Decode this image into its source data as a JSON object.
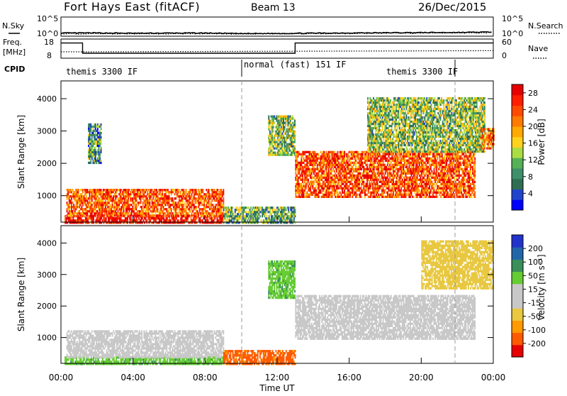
{
  "header": {
    "title": "Fort Hays East (fitACF)",
    "beam": "Beam 13",
    "date": "26/Dec/2015"
  },
  "left_labels": {
    "nsky": "N.Sky",
    "freq_top": "Freq.",
    "freq_unit": "[MHz]",
    "cpid": "CPID"
  },
  "right_labels": {
    "nsearch": "N.Search",
    "nave": "Nave"
  },
  "cpid_segments": [
    {
      "label": "themis 3300 IF"
    },
    {
      "label": "normal (fast) 151 IF"
    },
    {
      "label": "themis 3300 IF"
    }
  ],
  "colors": {
    "power": [
      "#0000ff",
      "#2244cc",
      "#2f6e52",
      "#3e8f6a",
      "#56b056",
      "#aadd44",
      "#ffd21e",
      "#ffaa00",
      "#ff7a00",
      "#ff4a00",
      "#ff1e00",
      "#e60000"
    ],
    "velocity": [
      "#e60000",
      "#ff5a00",
      "#ff9a00",
      "#e8c840",
      "#c8c8c8",
      "#c8c8c8",
      "#66cc33",
      "#3a8f5a",
      "#2266aa",
      "#2233cc"
    ]
  },
  "chart_data": [
    {
      "type": "line",
      "panel": "noise",
      "left_axis": {
        "ticks": [
          "10^5",
          "10^0"
        ],
        "label": "N.Sky"
      },
      "right_axis": {
        "ticks": [
          "10^5",
          "10^0"
        ],
        "label": "N.Search"
      },
      "series": [
        {
          "name": "N.Sky",
          "style": "solid",
          "x": [
            0,
            2,
            4,
            6,
            8,
            10,
            12,
            14,
            16,
            18,
            20,
            22,
            24
          ],
          "y_log10": [
            0.7,
            0.75,
            0.65,
            0.7,
            0.72,
            0.55,
            0.6,
            0.68,
            0.75,
            0.8,
            0.85,
            0.9,
            1.0
          ]
        },
        {
          "name": "N.Search",
          "style": "dotted",
          "x": [
            0,
            2,
            4,
            6,
            8,
            10,
            12,
            14,
            16,
            18,
            20,
            22,
            24
          ],
          "y_log10": [
            0.5,
            0.55,
            0.5,
            0.52,
            0.55,
            0.45,
            0.5,
            0.55,
            0.6,
            0.65,
            0.7,
            0.75,
            0.8
          ]
        }
      ]
    },
    {
      "type": "line",
      "panel": "frequency",
      "left_axis": {
        "ticks": [
          "18",
          "8"
        ],
        "label": "Freq. [MHz]"
      },
      "right_axis": {
        "ticks": [
          "60",
          "0"
        ],
        "label": "Nave"
      },
      "series": [
        {
          "name": "Freq.",
          "style": "solid",
          "x": [
            0,
            1.2,
            1.2,
            13.0,
            13.0,
            24
          ],
          "y": [
            16.5,
            16.5,
            10.5,
            10.5,
            16.5,
            16.5
          ]
        },
        {
          "name": "Nave",
          "style": "dotted",
          "x": [
            0,
            1.2,
            13.0,
            24
          ],
          "y": [
            20,
            20,
            22,
            24
          ]
        }
      ]
    },
    {
      "type": "heatmap",
      "panel": "power",
      "ylabel": "Slant Range [km]",
      "yticks": [
        1000,
        2000,
        3000,
        4000
      ],
      "ylim": [
        180,
        4550
      ],
      "xlim": [
        0,
        24
      ],
      "colorbar": {
        "label": "Power [dB]",
        "ticks": [
          4,
          8,
          12,
          16,
          20,
          24,
          28
        ],
        "range": [
          0,
          30
        ]
      },
      "regions": [
        {
          "x0": 0.2,
          "x1": 9.0,
          "r0": 200,
          "r1": 420,
          "level": 0.95
        },
        {
          "x0": 0.3,
          "x1": 9.0,
          "r0": 420,
          "r1": 1250,
          "level": 0.78
        },
        {
          "x0": 1.5,
          "x1": 2.2,
          "r0": 2050,
          "r1": 3250,
          "level": 0.3
        },
        {
          "x0": 9.0,
          "x1": 13.0,
          "r0": 200,
          "r1": 700,
          "level": 0.35
        },
        {
          "x0": 11.5,
          "x1": 13.0,
          "r0": 2300,
          "r1": 3500,
          "level": 0.4
        },
        {
          "x0": 13.0,
          "x1": 23.0,
          "r0": 1000,
          "r1": 2400,
          "level": 0.8
        },
        {
          "x0": 17.0,
          "x1": 23.5,
          "r0": 2400,
          "r1": 4100,
          "level": 0.4
        },
        {
          "x0": 23.3,
          "x1": 24.0,
          "r0": 2500,
          "r1": 3100,
          "level": 0.7
        }
      ]
    },
    {
      "type": "heatmap",
      "panel": "velocity",
      "ylabel": "Slant Range [km]",
      "xlabel": "Time UT",
      "yticks": [
        1000,
        2000,
        3000,
        4000
      ],
      "ylim": [
        180,
        4550
      ],
      "xlim": [
        0,
        24
      ],
      "xticks": [
        "00:00",
        "04:00",
        "08:00",
        "12:00",
        "16:00",
        "20:00",
        "00:00"
      ],
      "colorbar": {
        "label": "Velocity [m s⁻¹]",
        "ticks": [
          -200,
          -100,
          -50,
          -15,
          15,
          50,
          100,
          200
        ]
      },
      "regions": [
        {
          "x0": 0.2,
          "x1": 9.0,
          "r0": 200,
          "r1": 420,
          "level": "green"
        },
        {
          "x0": 0.3,
          "x1": 9.0,
          "r0": 420,
          "r1": 1250,
          "level": "grey"
        },
        {
          "x0": 9.0,
          "x1": 13.0,
          "r0": 200,
          "r1": 650,
          "level": "orange"
        },
        {
          "x0": 13.0,
          "x1": 23.0,
          "r0": 1000,
          "r1": 2400,
          "level": "grey"
        },
        {
          "x0": 11.5,
          "x1": 13.0,
          "r0": 2300,
          "r1": 3500,
          "level": "green"
        },
        {
          "x0": 20.0,
          "x1": 24.0,
          "r0": 2600,
          "r1": 4100,
          "level": "yellow"
        }
      ]
    }
  ]
}
